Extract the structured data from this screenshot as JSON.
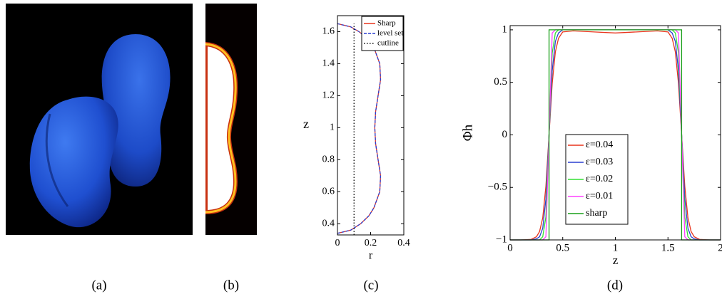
{
  "images": [
    {
      "caption": "(a)"
    },
    {
      "caption": "(b)"
    }
  ],
  "chart_data": [
    {
      "type": "line",
      "caption": "(c)",
      "xlabel": "r",
      "ylabel": "z",
      "xlim": [
        0,
        0.4
      ],
      "ylim": [
        0.33,
        1.7
      ],
      "xticks": [
        0,
        0.2,
        0.4
      ],
      "yticks": [
        0.4,
        0.6,
        0.8,
        1,
        1.2,
        1.4,
        1.6
      ],
      "legend": "upper right",
      "series": [
        {
          "name": "Sharp",
          "color": "#e8341c",
          "style": "solid",
          "x": [
            0,
            0.08,
            0.14,
            0.19,
            0.22,
            0.255,
            0.26,
            0.245,
            0.23,
            0.225,
            0.23,
            0.245,
            0.26,
            0.255,
            0.22,
            0.19,
            0.13,
            0.08,
            0
          ],
          "values": [
            0.34,
            0.36,
            0.4,
            0.45,
            0.5,
            0.6,
            0.7,
            0.8,
            0.9,
            1.0,
            1.1,
            1.2,
            1.3,
            1.4,
            1.5,
            1.55,
            1.6,
            1.63,
            1.65
          ]
        },
        {
          "name": "level set",
          "color": "#2a3fd0",
          "style": "dashed",
          "x": [
            0,
            0.08,
            0.14,
            0.19,
            0.22,
            0.255,
            0.26,
            0.245,
            0.23,
            0.225,
            0.23,
            0.245,
            0.26,
            0.255,
            0.22,
            0.19,
            0.13,
            0.08,
            0
          ],
          "values": [
            0.34,
            0.36,
            0.4,
            0.45,
            0.5,
            0.6,
            0.7,
            0.8,
            0.9,
            1.0,
            1.1,
            1.2,
            1.3,
            1.4,
            1.5,
            1.55,
            1.6,
            1.63,
            1.65
          ]
        },
        {
          "name": "cutline",
          "color": "#000000",
          "style": "dotted",
          "x": [
            0.1,
            0.1
          ],
          "values": [
            0.33,
            1.65
          ]
        }
      ]
    },
    {
      "type": "line",
      "caption": "(d)",
      "xlabel": "z",
      "ylabel": "Φh",
      "xlim": [
        0,
        2
      ],
      "ylim": [
        -1,
        1.04
      ],
      "xticks": [
        0,
        0.5,
        1,
        1.5,
        2
      ],
      "yticks": [
        {
          "value": -1,
          "label": "−1"
        },
        {
          "value": -0.5,
          "label": "−0.5"
        },
        0,
        0.5,
        1
      ],
      "legend": "lower center",
      "x": [
        0,
        0.1,
        0.2,
        0.25,
        0.28,
        0.31,
        0.34,
        0.37,
        0.4,
        0.43,
        0.46,
        0.5,
        0.6,
        0.8,
        1.0,
        1.2,
        1.4,
        1.5,
        1.54,
        1.57,
        1.6,
        1.63,
        1.66,
        1.69,
        1.72,
        1.75,
        1.8,
        1.9,
        2.0
      ],
      "series": [
        {
          "name": "ε=0.04",
          "color": "#e8341c",
          "style": "solid",
          "values": [
            -1,
            -1,
            -0.995,
            -0.97,
            -0.92,
            -0.79,
            -0.49,
            0,
            0.49,
            0.79,
            0.92,
            0.98,
            0.99,
            0.98,
            0.97,
            0.98,
            0.99,
            0.98,
            0.92,
            0.79,
            0.49,
            0,
            -0.49,
            -0.79,
            -0.92,
            -0.97,
            -0.995,
            -1,
            -1
          ]
        },
        {
          "name": "ε=0.03",
          "color": "#2a3fd0",
          "style": "solid",
          "values": [
            -1,
            -1,
            -1,
            -0.99,
            -0.97,
            -0.89,
            -0.61,
            0,
            0.61,
            0.89,
            0.97,
            1,
            1,
            1,
            1,
            1,
            1,
            1,
            0.97,
            0.89,
            0.61,
            0,
            -0.61,
            -0.89,
            -0.97,
            -0.99,
            -1,
            -1,
            -1
          ]
        },
        {
          "name": "ε=0.02",
          "color": "#33e033",
          "style": "solid",
          "values": [
            -1,
            -1,
            -1,
            -1,
            -1,
            -0.97,
            -0.78,
            0,
            0.78,
            0.97,
            1,
            1,
            1,
            1,
            1,
            1,
            1,
            1,
            1,
            0.97,
            0.78,
            0,
            -0.78,
            -0.97,
            -1,
            -1,
            -1,
            -1,
            -1
          ]
        },
        {
          "name": "ε=0.01",
          "color": "#ff40ff",
          "style": "solid",
          "values": [
            -1,
            -1,
            -1,
            -1,
            -1,
            -1,
            -0.97,
            0,
            0.97,
            1,
            1,
            1,
            1,
            1,
            1,
            1,
            1,
            1,
            1,
            1,
            0.97,
            0,
            -0.97,
            -1,
            -1,
            -1,
            -1,
            -1,
            -1
          ]
        },
        {
          "name": "sharp",
          "color": "#18a018",
          "style": "solid",
          "x": [
            0,
            0.37,
            0.37,
            1.63,
            1.63,
            2
          ],
          "values": [
            -1,
            -1,
            1,
            1,
            -1,
            -1
          ]
        }
      ]
    }
  ]
}
